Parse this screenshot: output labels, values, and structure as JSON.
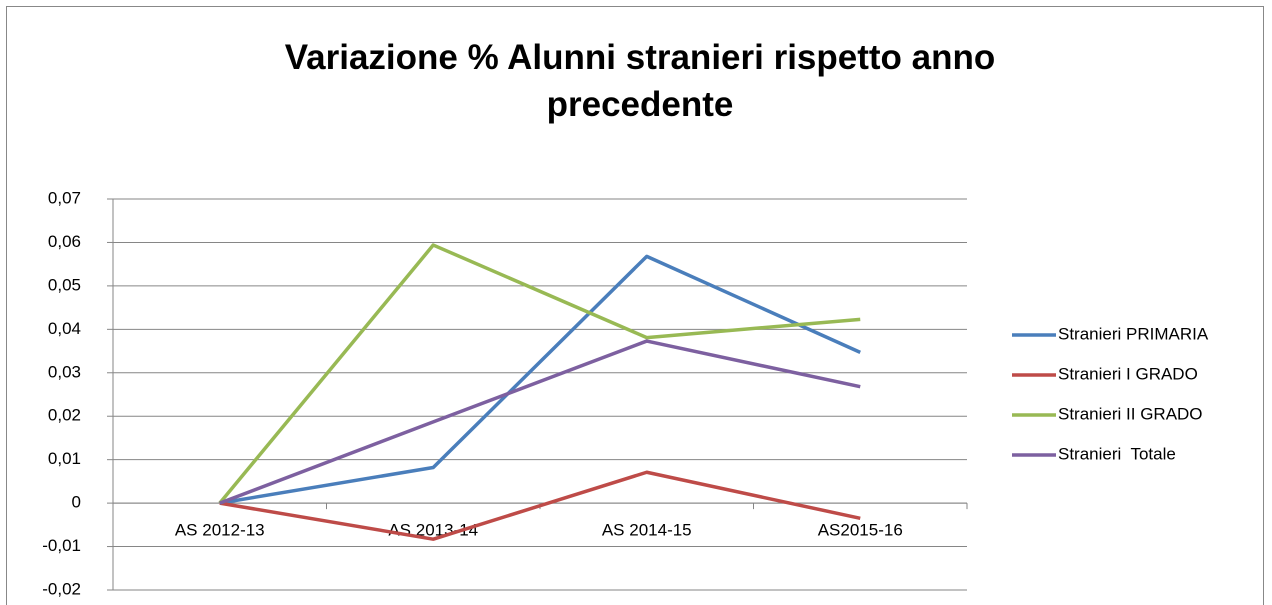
{
  "chart_data": {
    "type": "line",
    "title": "Variazione % Alunni stranieri rispetto anno precedente",
    "categories": [
      "AS 2012-13",
      "AS 2013-14",
      "AS 2014-15",
      "AS2015-16"
    ],
    "series": [
      {
        "name": "Stranieri PRIMARIA",
        "color": "#4a7ebb",
        "values": [
          0,
          0.0082,
          0.0568,
          0.0347
        ]
      },
      {
        "name": "Stranieri I GRADO",
        "color": "#be4b48",
        "values": [
          0,
          -0.0083,
          0.0071,
          -0.0035
        ]
      },
      {
        "name": "Stranieri II GRADO",
        "color": "#98b954",
        "values": [
          0,
          0.0594,
          0.0381,
          0.0423
        ]
      },
      {
        "name": "Stranieri  Totale",
        "color": "#7d60a0",
        "values": [
          0,
          0.0187,
          0.0373,
          0.0268
        ]
      }
    ],
    "ylim": [
      -0.02,
      0.07
    ],
    "yticks": [
      {
        "value": -0.02,
        "label": "-0,02"
      },
      {
        "value": -0.01,
        "label": "-0,01"
      },
      0,
      {
        "value": 0.01,
        "label": "0,01"
      },
      {
        "value": 0.02,
        "label": "0,02"
      },
      {
        "value": 0.03,
        "label": "0,03"
      },
      {
        "value": 0.04,
        "label": "0,04"
      },
      {
        "value": 0.05,
        "label": "0,05"
      },
      {
        "value": 0.06,
        "label": "0,06"
      },
      {
        "value": 0.07,
        "label": "0,07"
      }
    ],
    "grid": true,
    "legend": "right"
  }
}
